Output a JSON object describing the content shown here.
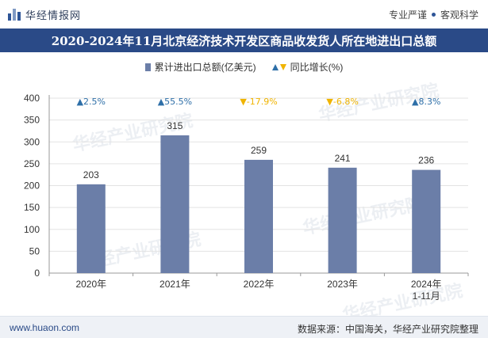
{
  "header": {
    "brand": "华经情报网",
    "slogan_left": "专业严谨",
    "slogan_right": "客观科学"
  },
  "title": "2020-2024年11月北京经济技术开发区商品收发货人所在地进出口总额",
  "legend": {
    "bar_label": "累计进出口总额(亿美元)",
    "growth_label": "同比增长(%)"
  },
  "watermark": "华经产业研究院",
  "footer": {
    "url": "www.huaon.com",
    "source": "数据来源：中国海关，华经产业研究院整理"
  },
  "colors": {
    "bar": "#6b7ea8",
    "up": "#2e6fa8",
    "down": "#f0b400",
    "title_bg": "#2a4a87"
  },
  "chart_data": {
    "type": "bar",
    "categories": [
      "2020年",
      "2021年",
      "2022年",
      "2023年",
      "2024年\n1-11月"
    ],
    "series": [
      {
        "name": "累计进出口总额(亿美元)",
        "values": [
          203,
          315,
          259,
          241,
          236
        ]
      },
      {
        "name": "同比增长(%)",
        "values": [
          2.5,
          55.5,
          -17.9,
          -6.8,
          8.3
        ]
      }
    ],
    "growth_labels": [
      "▲2.5%",
      "▲55.5%",
      "▼-17.9%",
      "▼-6.8%",
      "▲8.3%"
    ],
    "ylim": [
      0,
      400
    ],
    "yticks": [
      0,
      50,
      100,
      150,
      200,
      250,
      300,
      350,
      400
    ],
    "title": "",
    "xlabel": "",
    "ylabel": ""
  }
}
